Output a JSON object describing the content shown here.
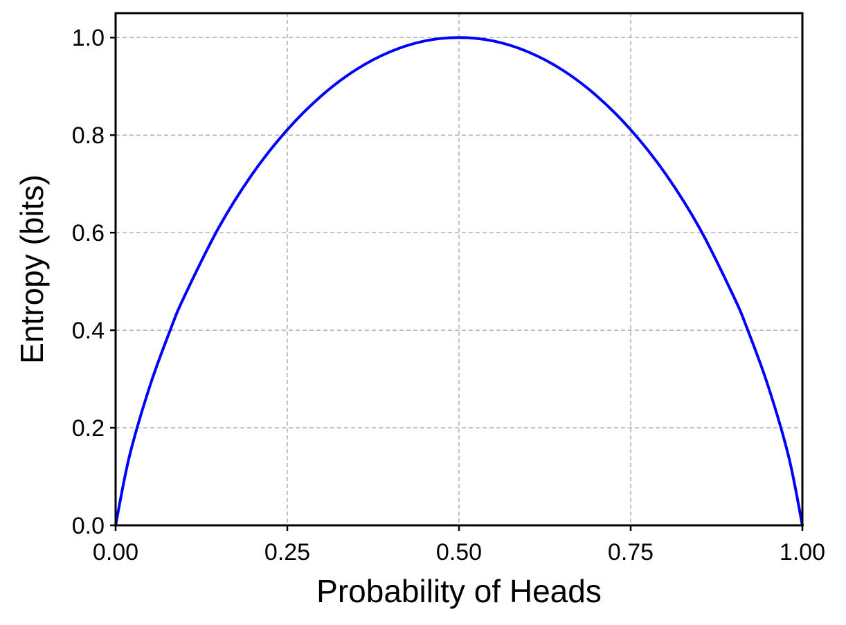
{
  "chart_data": {
    "type": "line",
    "title": "",
    "xlabel": "Probability of Heads",
    "ylabel": "Entropy (bits)",
    "xlim": [
      0,
      1
    ],
    "ylim": [
      0,
      1.05
    ],
    "grid": true,
    "legend": "none",
    "x_ticks": [
      "0.00",
      "0.25",
      "0.50",
      "0.75",
      "1.00"
    ],
    "y_ticks": [
      "0.0",
      "0.2",
      "0.4",
      "0.6",
      "0.8",
      "1.0"
    ],
    "series": [
      {
        "color": "#0000ff",
        "x": [
          0.0,
          0.02,
          0.05,
          0.08,
          0.1,
          0.15,
          0.2,
          0.25,
          0.3,
          0.35,
          0.4,
          0.45,
          0.5,
          0.55,
          0.6,
          0.65,
          0.7,
          0.75,
          0.8,
          0.85,
          0.9,
          0.92,
          0.95,
          0.98,
          1.0
        ],
        "y": [
          0.0,
          0.141,
          0.286,
          0.402,
          0.469,
          0.61,
          0.722,
          0.811,
          0.881,
          0.934,
          0.971,
          0.993,
          1.0,
          0.993,
          0.971,
          0.934,
          0.881,
          0.811,
          0.722,
          0.61,
          0.469,
          0.402,
          0.286,
          0.141,
          0.0
        ]
      }
    ]
  },
  "colors": {
    "line": "#0000ff",
    "grid": "#b0b0b0",
    "axes": "#000000"
  }
}
